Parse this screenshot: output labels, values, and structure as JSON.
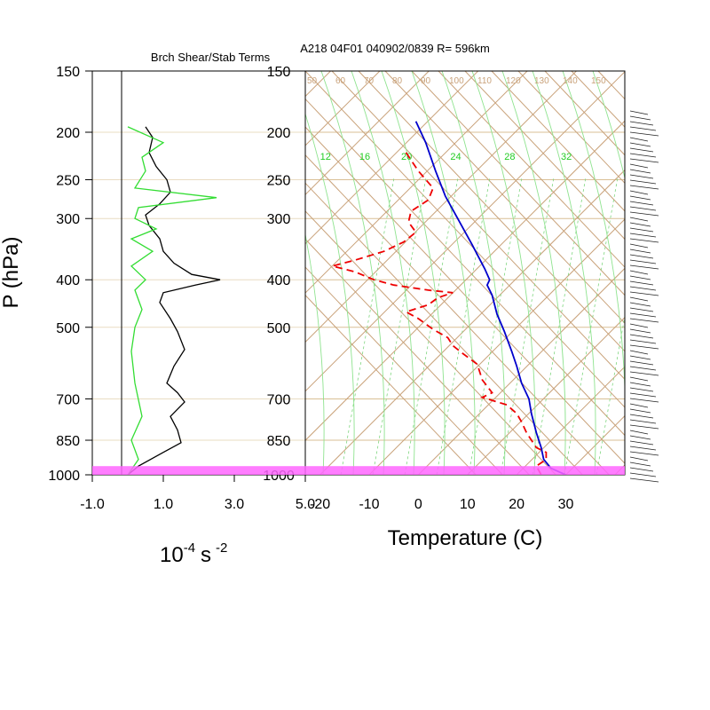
{
  "title": "A218 04F01 040902/0839 R= 596km",
  "chart_data": [
    {
      "type": "line",
      "title": "Brch Shear/Stab Terms",
      "xlabel_base": "10",
      "xlabel_exp": "-4",
      "xlabel_unit": "s",
      "xlabel_unit_exp": "-2",
      "ylabel": "P (hPa)",
      "y_scale": "log",
      "y_reversed": true,
      "xlim": [
        -1.0,
        5.0
      ],
      "ylim": [
        1000,
        150
      ],
      "x_tick_labels": [
        "-1.0",
        "1.0",
        "3.0",
        "5.0"
      ],
      "x_ticks": [
        -1.0,
        1.0,
        3.0,
        5.0
      ],
      "y_ticks": [
        150,
        200,
        250,
        300,
        400,
        500,
        700,
        850,
        1000
      ],
      "y_tick_labels": [
        "150",
        "200",
        "250",
        "300",
        "400",
        "500",
        "700",
        "850",
        "1000"
      ],
      "zero_line": 0,
      "series": [
        {
          "color": "#000000",
          "points": [
            [
              0.5,
              195
            ],
            [
              0.7,
              205
            ],
            [
              0.6,
              220
            ],
            [
              0.8,
              235
            ],
            [
              1.1,
              250
            ],
            [
              1.2,
              265
            ],
            [
              0.9,
              280
            ],
            [
              0.5,
              295
            ],
            [
              0.6,
              310
            ],
            [
              0.9,
              330
            ],
            [
              1.0,
              350
            ],
            [
              1.3,
              370
            ],
            [
              1.8,
              390
            ],
            [
              2.6,
              400
            ],
            [
              1.9,
              410
            ],
            [
              1.0,
              425
            ],
            [
              0.9,
              445
            ],
            [
              1.2,
              480
            ],
            [
              1.4,
              510
            ],
            [
              1.6,
              555
            ],
            [
              1.3,
              600
            ],
            [
              1.1,
              650
            ],
            [
              1.4,
              680
            ],
            [
              1.6,
              710
            ],
            [
              1.2,
              760
            ],
            [
              1.4,
              810
            ],
            [
              1.5,
              860
            ],
            [
              1.0,
              900
            ],
            [
              0.3,
              960
            ],
            [
              0.0,
              1000
            ]
          ]
        },
        {
          "color": "#33dd33",
          "points": [
            [
              0.0,
              195
            ],
            [
              1.0,
              210
            ],
            [
              0.4,
              225
            ],
            [
              0.5,
              240
            ],
            [
              0.2,
              260
            ],
            [
              2.5,
              272
            ],
            [
              0.3,
              285
            ],
            [
              0.2,
              300
            ],
            [
              0.8,
              315
            ],
            [
              0.1,
              330
            ],
            [
              0.7,
              350
            ],
            [
              0.1,
              375
            ],
            [
              0.5,
              400
            ],
            [
              0.2,
              420
            ],
            [
              0.4,
              460
            ],
            [
              0.2,
              500
            ],
            [
              0.1,
              560
            ],
            [
              0.2,
              650
            ],
            [
              0.4,
              760
            ],
            [
              0.1,
              850
            ],
            [
              0.3,
              930
            ],
            [
              0.0,
              1000
            ]
          ]
        }
      ]
    },
    {
      "type": "line",
      "xlabel": "Temperature (C)",
      "y_scale": "log",
      "y_reversed": true,
      "xlim": [
        -23,
        42
      ],
      "ylim": [
        1000,
        150
      ],
      "x_ticks": [
        -20,
        -10,
        0,
        10,
        20,
        30
      ],
      "x_tick_labels": [
        "-20",
        "-10",
        "0",
        "10",
        "20",
        "30"
      ],
      "y_ticks": [
        150,
        200,
        250,
        300,
        400,
        500,
        700,
        850,
        1000
      ],
      "y_tick_labels": [
        "150",
        "200",
        "250",
        "300",
        "400",
        "500",
        "700",
        "850",
        "1000"
      ],
      "mixing_ratio_labels": [
        "12",
        "16",
        "20",
        "24",
        "28",
        "32"
      ],
      "mixing_ratio_label_x": [
        -20,
        -12,
        -3.5,
        6.5,
        17.5,
        29
      ],
      "isotherm_labels": [
        "50",
        "60",
        "70",
        "80",
        "90",
        "100",
        "110",
        "120",
        "130",
        "140",
        "150"
      ],
      "surface_band": [
        960,
        1000
      ],
      "series": [
        {
          "name": "temperature",
          "color": "#0000cc",
          "style": "solid",
          "points": [
            [
              -0.5,
              190
            ],
            [
              1.5,
              210
            ],
            [
              3.5,
              240
            ],
            [
              5.5,
              270
            ],
            [
              8,
              300
            ],
            [
              11,
              340
            ],
            [
              13.5,
              380
            ],
            [
              14.5,
              400
            ],
            [
              14,
              410
            ],
            [
              15,
              430
            ],
            [
              16,
              470
            ],
            [
              17.5,
              510
            ],
            [
              19,
              560
            ],
            [
              20,
              600
            ],
            [
              21,
              650
            ],
            [
              22.5,
              700
            ],
            [
              23,
              750
            ],
            [
              24,
              820
            ],
            [
              25,
              880
            ],
            [
              25.5,
              930
            ],
            [
              27,
              970
            ],
            [
              30,
              1000
            ]
          ]
        },
        {
          "name": "dewpoint",
          "color": "#ee0000",
          "style": "dashed",
          "points": [
            [
              -2.5,
              220
            ],
            [
              0,
              240
            ],
            [
              3,
              260
            ],
            [
              2,
              275
            ],
            [
              -1.5,
              290
            ],
            [
              -2,
              305
            ],
            [
              -0.5,
              320
            ],
            [
              -3,
              335
            ],
            [
              -7,
              350
            ],
            [
              -13,
              365
            ],
            [
              -17.5,
              375
            ],
            [
              -13,
              385
            ],
            [
              -9,
              400
            ],
            [
              -5,
              410
            ],
            [
              2,
              420
            ],
            [
              7,
              425
            ],
            [
              4,
              435
            ],
            [
              2,
              450
            ],
            [
              -2.5,
              465
            ],
            [
              0,
              480
            ],
            [
              3,
              505
            ],
            [
              6,
              525
            ],
            [
              7,
              545
            ],
            [
              9,
              565
            ],
            [
              12,
              595
            ],
            [
              13,
              640
            ],
            [
              15,
              680
            ],
            [
              13,
              695
            ],
            [
              18,
              720
            ],
            [
              20,
              750
            ],
            [
              21,
              780
            ],
            [
              22,
              820
            ],
            [
              23,
              850
            ],
            [
              24,
              880
            ],
            [
              26,
              900
            ],
            [
              26,
              930
            ],
            [
              24,
              960
            ],
            [
              25,
              1000
            ]
          ]
        }
      ]
    }
  ]
}
